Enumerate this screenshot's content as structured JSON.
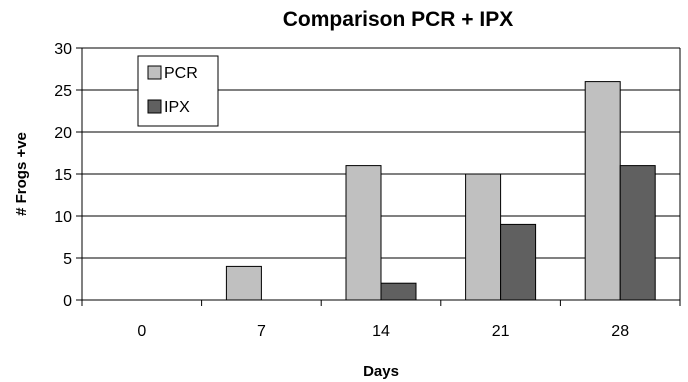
{
  "chart_data": {
    "type": "bar",
    "title": "Comparison PCR + IPX",
    "xlabel": "Days",
    "ylabel": "# Frogs +ve",
    "categories": [
      "0",
      "7",
      "14",
      "21",
      "28"
    ],
    "series": [
      {
        "name": "PCR",
        "values": [
          0,
          4,
          16,
          15,
          26
        ],
        "color": "#c0c0c0"
      },
      {
        "name": "IPX",
        "values": [
          0,
          0,
          2,
          9,
          16
        ],
        "color": "#606060"
      }
    ],
    "ylim": [
      0,
      30
    ],
    "yticks": [
      0,
      5,
      10,
      15,
      20,
      25,
      30
    ],
    "grid": true,
    "legend": "top-left"
  }
}
